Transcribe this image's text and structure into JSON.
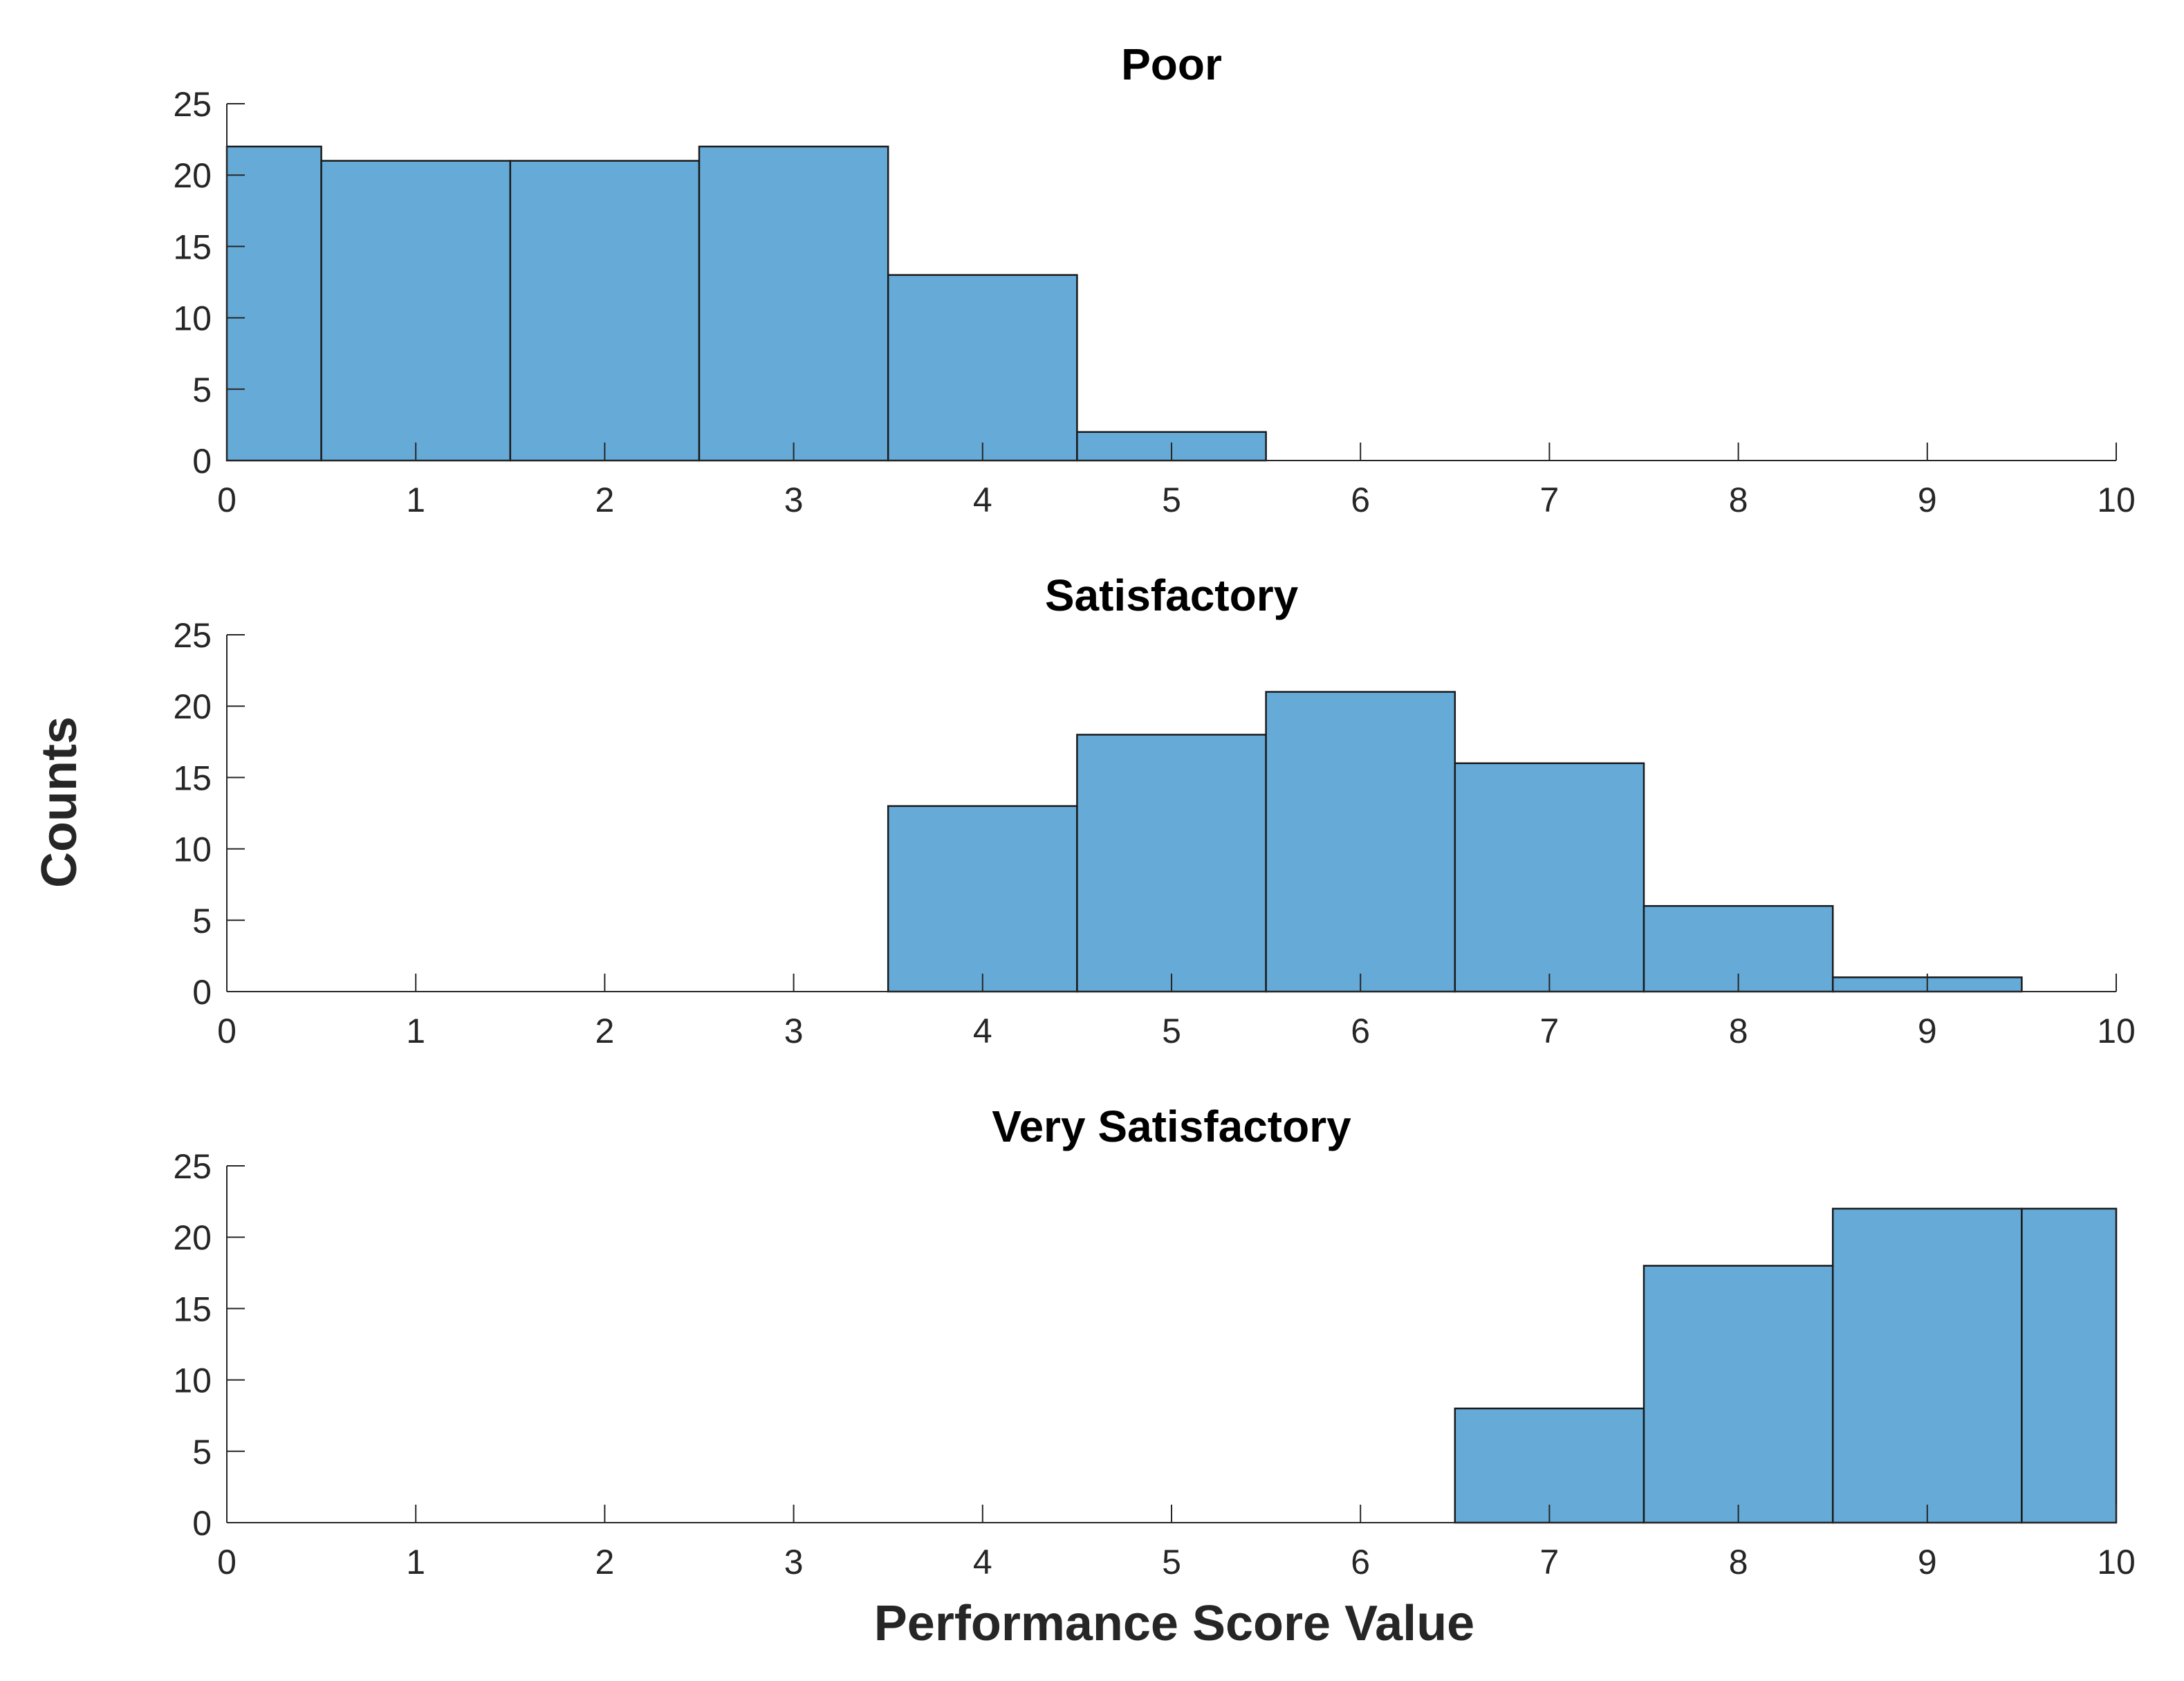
{
  "chart_data": [
    {
      "type": "bar",
      "title": "Poor",
      "bin_centers": [
        0,
        1,
        2,
        3,
        4,
        5,
        6,
        7,
        8,
        9,
        10
      ],
      "values": [
        22,
        21,
        21,
        22,
        13,
        2,
        0,
        0,
        0,
        0,
        0
      ],
      "xlim": [
        0,
        10
      ],
      "ylim": [
        0,
        25
      ],
      "xticks": [
        "0",
        "1",
        "2",
        "3",
        "4",
        "5",
        "6",
        "7",
        "8",
        "9",
        "10"
      ],
      "yticks": [
        "0",
        "5",
        "10",
        "15",
        "20",
        "25"
      ]
    },
    {
      "type": "bar",
      "title": "Satisfactory",
      "bin_centers": [
        0,
        1,
        2,
        3,
        4,
        5,
        6,
        7,
        8,
        9,
        10
      ],
      "values": [
        0,
        0,
        0,
        0,
        13,
        18,
        21,
        16,
        6,
        1,
        0
      ],
      "xlim": [
        0,
        10
      ],
      "ylim": [
        0,
        25
      ],
      "xticks": [
        "0",
        "1",
        "2",
        "3",
        "4",
        "5",
        "6",
        "7",
        "8",
        "9",
        "10"
      ],
      "yticks": [
        "0",
        "5",
        "10",
        "15",
        "20",
        "25"
      ]
    },
    {
      "type": "bar",
      "title": "Very Satisfactory",
      "bin_centers": [
        0,
        1,
        2,
        3,
        4,
        5,
        6,
        7,
        8,
        9,
        10
      ],
      "values": [
        0,
        0,
        0,
        0,
        0,
        0,
        0,
        8,
        18,
        22,
        22
      ],
      "xlim": [
        0,
        10
      ],
      "ylim": [
        0,
        25
      ],
      "xticks": [
        "0",
        "1",
        "2",
        "3",
        "4",
        "5",
        "6",
        "7",
        "8",
        "9",
        "10"
      ],
      "yticks": [
        "0",
        "5",
        "10",
        "15",
        "20",
        "25"
      ]
    }
  ],
  "xlabel": "Performance Score Value",
  "ylabel": "Counts",
  "bar_color": "#66aad8",
  "bin_width": 1
}
